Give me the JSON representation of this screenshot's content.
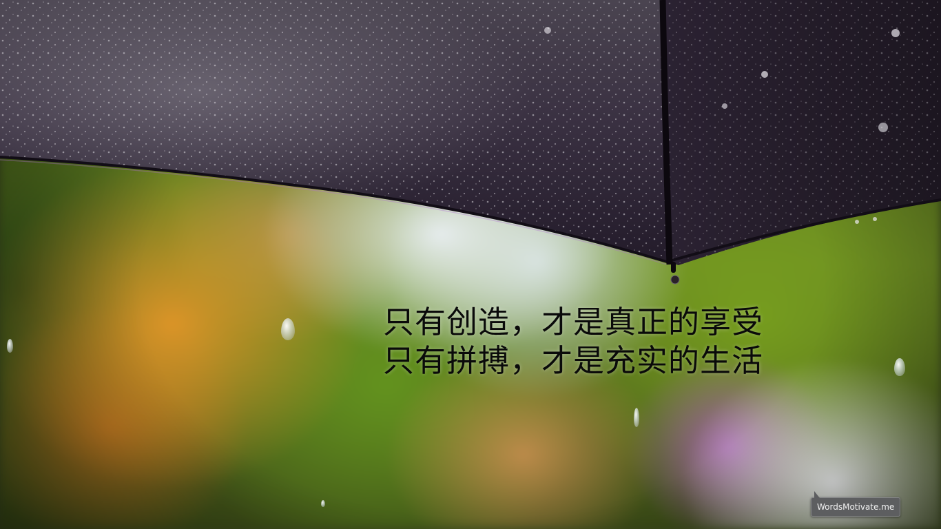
{
  "quote": {
    "line1": "只有创造，才是真正的享受",
    "line2": "只有拼搏，才是充实的生活"
  },
  "watermark": {
    "label": "WordsMotivate.me"
  },
  "scene": {
    "subject": "umbrella",
    "colors": {
      "umbrella": "#2a2230",
      "background_green": "#6c8a24",
      "background_orange": "#e29628",
      "quote_text": "#0a0a0a",
      "watermark_bg": "#5d5e60"
    }
  }
}
